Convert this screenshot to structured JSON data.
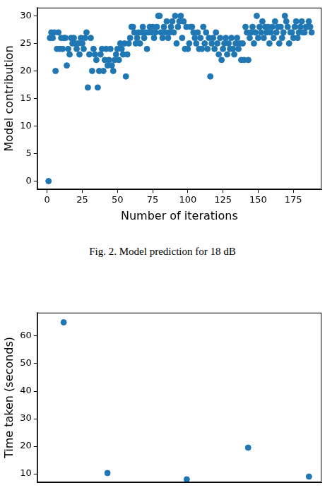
{
  "chart_data": [
    {
      "type": "scatter",
      "caption": "Fig. 2.  Model prediction for 18 dB",
      "x_label": "Number of iterations",
      "y_label": "Model contribution",
      "color": "#1f77b4",
      "marker": "circle",
      "grid": false,
      "xlim": [
        -7,
        195
      ],
      "xticks": [
        0,
        25,
        50,
        75,
        100,
        125,
        150,
        175
      ],
      "ylim": [
        -1.5,
        31.5
      ],
      "yticks": [
        0,
        5,
        10,
        15,
        20,
        25,
        30
      ],
      "x": [
        1,
        2,
        3,
        4,
        5,
        6,
        7,
        8,
        9,
        10,
        11,
        12,
        13,
        14,
        15,
        16,
        17,
        18,
        19,
        20,
        21,
        22,
        23,
        24,
        25,
        26,
        27,
        28,
        29,
        30,
        31,
        32,
        33,
        34,
        35,
        36,
        37,
        38,
        39,
        40,
        41,
        42,
        43,
        44,
        45,
        46,
        47,
        48,
        49,
        50,
        51,
        52,
        53,
        54,
        55,
        56,
        57,
        58,
        59,
        60,
        61,
        62,
        63,
        64,
        65,
        66,
        67,
        68,
        69,
        70,
        71,
        72,
        73,
        74,
        75,
        76,
        77,
        78,
        79,
        80,
        81,
        82,
        83,
        84,
        85,
        86,
        87,
        88,
        89,
        90,
        91,
        92,
        93,
        94,
        95,
        96,
        97,
        98,
        99,
        100,
        101,
        102,
        103,
        104,
        105,
        106,
        107,
        108,
        109,
        110,
        111,
        112,
        113,
        114,
        115,
        116,
        117,
        118,
        119,
        120,
        121,
        122,
        123,
        124,
        125,
        126,
        127,
        128,
        129,
        130,
        131,
        132,
        133,
        134,
        135,
        136,
        137,
        138,
        139,
        140,
        141,
        142,
        143,
        144,
        145,
        146,
        147,
        148,
        149,
        150,
        151,
        152,
        153,
        154,
        155,
        156,
        157,
        158,
        159,
        160,
        161,
        162,
        163,
        164,
        165,
        166,
        167,
        168,
        169,
        170,
        171,
        172,
        173,
        174,
        175,
        176,
        177,
        178,
        179,
        180,
        181,
        182,
        183,
        184,
        185,
        186,
        187,
        188
      ],
      "values": [
        0,
        26,
        27,
        26,
        27,
        20,
        24,
        27,
        24,
        26,
        24,
        26,
        26,
        21,
        24,
        23,
        26,
        25,
        26,
        25,
        24,
        25,
        23,
        26,
        25,
        24,
        26,
        27,
        17,
        23,
        26,
        20,
        24,
        23,
        22,
        17,
        20,
        23,
        24,
        20,
        22,
        24,
        21,
        22,
        24,
        21,
        20,
        22,
        23,
        24,
        22,
        25,
        24,
        23,
        25,
        19,
        23,
        25,
        26,
        28,
        28,
        27,
        25,
        26,
        27,
        25,
        27,
        28,
        26,
        27,
        24,
        27,
        28,
        27,
        28,
        26,
        27,
        28,
        30,
        30,
        27,
        26,
        28,
        27,
        29,
        26,
        27,
        28,
        29,
        27,
        30,
        25,
        28,
        29,
        30,
        26,
        29,
        24,
        28,
        24,
        25,
        28,
        28,
        27,
        26,
        25,
        27,
        24,
        26,
        24,
        28,
        25,
        27,
        24,
        26,
        19,
        25,
        26,
        24,
        27,
        25,
        23,
        26,
        22,
        24,
        25,
        26,
        23,
        25,
        24,
        26,
        24,
        23,
        25,
        26,
        24,
        25,
        22,
        25,
        22,
        28,
        27,
        22,
        26,
        27,
        28,
        25,
        27,
        30,
        26,
        28,
        27,
        29,
        26,
        28,
        27,
        28,
        25,
        27,
        28,
        26,
        29,
        27,
        28,
        25,
        28,
        26,
        27,
        30,
        29,
        28,
        25,
        27,
        27,
        26,
        28,
        29,
        26,
        27,
        28,
        29,
        27,
        27,
        28,
        28,
        29,
        28,
        27
      ]
    },
    {
      "type": "scatter",
      "y_label": "Time taken (seconds)",
      "color": "#1f77b4",
      "marker": "circle",
      "grid": false,
      "tick_labels": "y",
      "xlim": [
        0,
        100
      ],
      "xticks": [],
      "ylim": [
        6.9,
        68.5
      ],
      "yticks": [
        10,
        20,
        30,
        40,
        50,
        60
      ],
      "x": [
        9.3,
        24.7,
        52.6,
        74.2,
        95.6
      ],
      "values": [
        65,
        10.3,
        8,
        19.5,
        9
      ]
    }
  ]
}
